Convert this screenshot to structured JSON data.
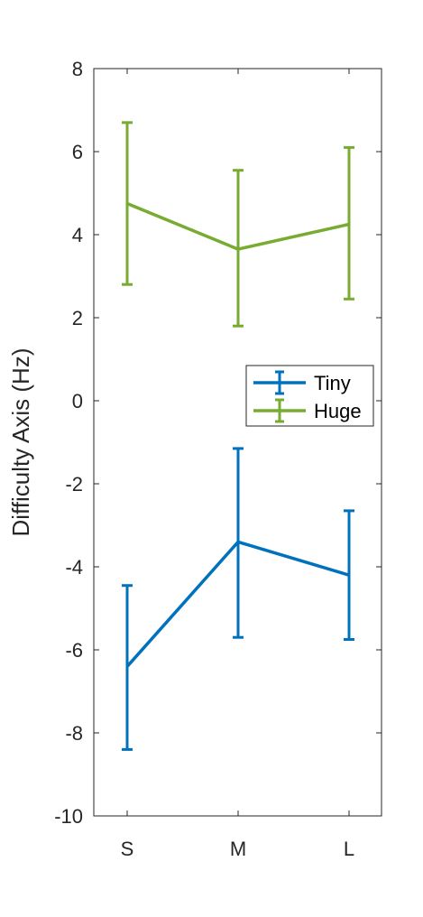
{
  "chart_data": {
    "type": "line",
    "title": "",
    "xlabel": "",
    "ylabel": "Difficulty Axis (Hz)",
    "categories": [
      "S",
      "M",
      "L"
    ],
    "ylim": [
      -10,
      8
    ],
    "yticks": [
      "-10",
      "-8",
      "-6",
      "-4",
      "-2",
      "0",
      "2",
      "4",
      "6",
      "8"
    ],
    "grid": false,
    "legend_position": "right",
    "series": [
      {
        "name": "Tiny",
        "color": "#0072BD",
        "values": [
          -6.4,
          -3.4,
          -4.2
        ],
        "err_low": [
          -8.4,
          -5.7,
          -5.75
        ],
        "err_high": [
          -4.45,
          -1.15,
          -2.65
        ]
      },
      {
        "name": "Huge",
        "color": "#77AC30",
        "values": [
          4.75,
          3.65,
          4.25
        ],
        "err_low": [
          2.8,
          1.8,
          2.45
        ],
        "err_high": [
          6.7,
          5.55,
          6.1
        ]
      }
    ]
  }
}
